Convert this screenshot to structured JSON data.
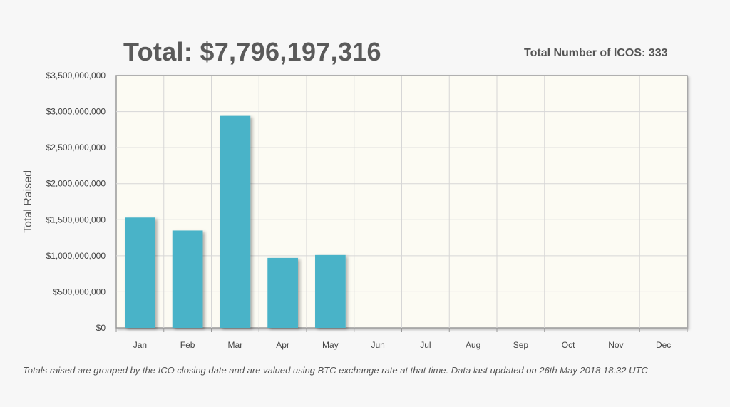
{
  "header": {
    "total_label": "Total: $7,796,197,316",
    "ico_count_label": "Total Number of ICOS: 333"
  },
  "footnote": "Totals raised are grouped by the ICO closing date and are valued using BTC exchange rate at that time. Data last updated on 26th May 2018 18:32 UTC",
  "colors": {
    "bar": "#4ab3c8",
    "plot_background": "#fcfbf3",
    "grid": "#d6d6d6"
  },
  "chart_data": {
    "type": "bar",
    "ylabel": "Total Raised",
    "categories": [
      "Jan",
      "Feb",
      "Mar",
      "Apr",
      "May",
      "Jun",
      "Jul",
      "Aug",
      "Sep",
      "Oct",
      "Nov",
      "Dec"
    ],
    "values": [
      1530000000,
      1350000000,
      2940000000,
      970000000,
      1010000000,
      0,
      0,
      0,
      0,
      0,
      0,
      0
    ],
    "ylim": [
      0,
      3500000000
    ],
    "yticks": [
      0,
      500000000,
      1000000000,
      1500000000,
      2000000000,
      2500000000,
      3000000000,
      3500000000
    ],
    "ytick_labels": [
      "$0",
      "$500,000,000",
      "$1,000,000,000",
      "$1,500,000,000",
      "$2,000,000,000",
      "$2,500,000,000",
      "$3,000,000,000",
      "$3,500,000,000"
    ],
    "grid": true
  }
}
